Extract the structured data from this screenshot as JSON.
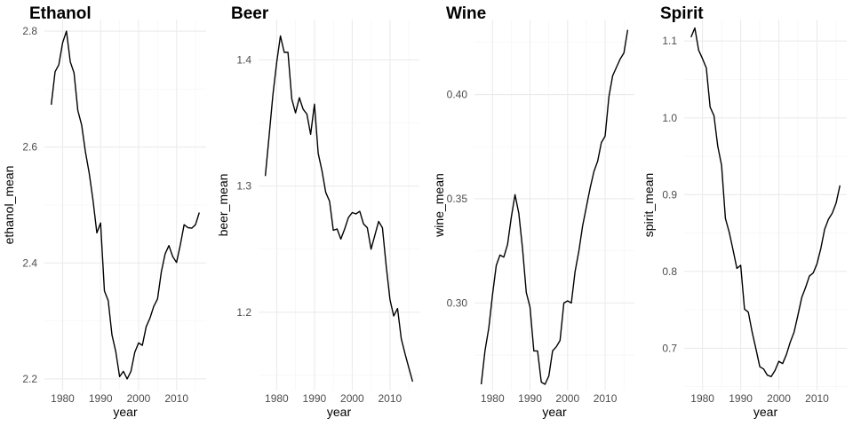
{
  "chart_data": [
    {
      "type": "line",
      "title": "Ethanol",
      "xlabel": "year",
      "ylabel": "ethanol_mean",
      "xlim": [
        1975.2,
        2017.8
      ],
      "ylim": [
        2.18,
        2.82
      ],
      "xticks": [
        1980,
        1990,
        2000,
        2010
      ],
      "yticks": [
        2.2,
        2.4,
        2.6,
        2.8
      ],
      "ytick_labels": [
        "2.2",
        "2.4",
        "2.6",
        "2.8"
      ],
      "grid": true,
      "x": [
        1977,
        1978,
        1979,
        1980,
        1981,
        1982,
        1983,
        1984,
        1985,
        1986,
        1987,
        1988,
        1989,
        1990,
        1991,
        1992,
        1993,
        1994,
        1995,
        1996,
        1997,
        1998,
        1999,
        2000,
        2001,
        2002,
        2003,
        2004,
        2005,
        2006,
        2007,
        2008,
        2009,
        2010,
        2011,
        2012,
        2013,
        2014,
        2015,
        2016
      ],
      "y": [
        2.673,
        2.73,
        2.742,
        2.78,
        2.8,
        2.747,
        2.728,
        2.663,
        2.638,
        2.592,
        2.555,
        2.508,
        2.452,
        2.469,
        2.352,
        2.335,
        2.276,
        2.247,
        2.204,
        2.213,
        2.2,
        2.213,
        2.246,
        2.262,
        2.258,
        2.29,
        2.305,
        2.325,
        2.338,
        2.385,
        2.416,
        2.43,
        2.411,
        2.401,
        2.431,
        2.466,
        2.461,
        2.46,
        2.466,
        2.487
      ]
    },
    {
      "type": "line",
      "title": "Beer",
      "xlabel": "year",
      "ylabel": "beer_mean",
      "xlim": [
        1975.2,
        2017.8
      ],
      "ylim": [
        1.138,
        1.432
      ],
      "xticks": [
        1980,
        1990,
        2000,
        2010
      ],
      "yticks": [
        1.2,
        1.3,
        1.4
      ],
      "ytick_labels": [
        "1.2",
        "1.3",
        "1.4"
      ],
      "grid": true,
      "x": [
        1977,
        1978,
        1979,
        1980,
        1981,
        1982,
        1983,
        1984,
        1985,
        1986,
        1987,
        1988,
        1989,
        1990,
        1991,
        1992,
        1993,
        1994,
        1995,
        1996,
        1997,
        1998,
        1999,
        2000,
        2001,
        2002,
        2003,
        2004,
        2005,
        2006,
        2007,
        2008,
        2009,
        2010,
        2011,
        2012,
        2013,
        2014,
        2015,
        2016
      ],
      "y": [
        1.308,
        1.34,
        1.372,
        1.398,
        1.419,
        1.406,
        1.406,
        1.369,
        1.358,
        1.37,
        1.361,
        1.357,
        1.341,
        1.365,
        1.326,
        1.312,
        1.295,
        1.288,
        1.265,
        1.266,
        1.258,
        1.266,
        1.275,
        1.279,
        1.278,
        1.28,
        1.27,
        1.267,
        1.25,
        1.261,
        1.272,
        1.267,
        1.237,
        1.21,
        1.197,
        1.203,
        1.179,
        1.167,
        1.156,
        1.145
      ]
    },
    {
      "type": "line",
      "title": "Wine",
      "xlabel": "year",
      "ylabel": "wine_mean",
      "xlim": [
        1975.2,
        2017.8
      ],
      "ylim": [
        0.258,
        0.436
      ],
      "xticks": [
        1980,
        1990,
        2000,
        2010
      ],
      "yticks": [
        0.3,
        0.35,
        0.4
      ],
      "ytick_labels": [
        "0.30",
        "0.35",
        "0.40"
      ],
      "grid": true,
      "x": [
        1977,
        1978,
        1979,
        1980,
        1981,
        1982,
        1983,
        1984,
        1985,
        1986,
        1987,
        1988,
        1989,
        1990,
        1991,
        1992,
        1993,
        1994,
        1995,
        1996,
        1997,
        1998,
        1999,
        2000,
        2001,
        2002,
        2003,
        2004,
        2005,
        2006,
        2007,
        2008,
        2009,
        2010,
        2011,
        2012,
        2013,
        2014,
        2015,
        2016
      ],
      "y": [
        0.261,
        0.277,
        0.288,
        0.304,
        0.318,
        0.323,
        0.322,
        0.328,
        0.341,
        0.352,
        0.343,
        0.326,
        0.305,
        0.298,
        0.277,
        0.277,
        0.262,
        0.261,
        0.265,
        0.277,
        0.279,
        0.282,
        0.3,
        0.301,
        0.3,
        0.315,
        0.325,
        0.337,
        0.346,
        0.355,
        0.363,
        0.368,
        0.377,
        0.38,
        0.399,
        0.409,
        0.413,
        0.417,
        0.42,
        0.431
      ]
    },
    {
      "type": "line",
      "title": "Spirit",
      "xlabel": "year",
      "ylabel": "spirit_mean",
      "xlim": [
        1975.2,
        2017.8
      ],
      "ylim": [
        0.645,
        1.128
      ],
      "xticks": [
        1980,
        1990,
        2000,
        2010
      ],
      "yticks": [
        0.7,
        0.8,
        0.9,
        1.0,
        1.1
      ],
      "ytick_labels": [
        "0.7",
        "0.8",
        "0.9",
        "1.0",
        "1.1"
      ],
      "grid": true,
      "x": [
        1977,
        1978,
        1979,
        1980,
        1981,
        1982,
        1983,
        1984,
        1985,
        1986,
        1987,
        1988,
        1989,
        1990,
        1991,
        1992,
        1993,
        1994,
        1995,
        1996,
        1997,
        1998,
        1999,
        2000,
        2001,
        2002,
        2003,
        2004,
        2005,
        2006,
        2007,
        2008,
        2009,
        2010,
        2011,
        2012,
        2013,
        2014,
        2015,
        2016
      ],
      "y": [
        1.105,
        1.117,
        1.088,
        1.077,
        1.065,
        1.014,
        1.003,
        0.963,
        0.938,
        0.869,
        0.851,
        0.828,
        0.804,
        0.808,
        0.751,
        0.747,
        0.721,
        0.699,
        0.676,
        0.673,
        0.665,
        0.663,
        0.671,
        0.683,
        0.68,
        0.692,
        0.708,
        0.721,
        0.743,
        0.766,
        0.779,
        0.794,
        0.798,
        0.81,
        0.83,
        0.855,
        0.868,
        0.876,
        0.889,
        0.912
      ]
    }
  ]
}
